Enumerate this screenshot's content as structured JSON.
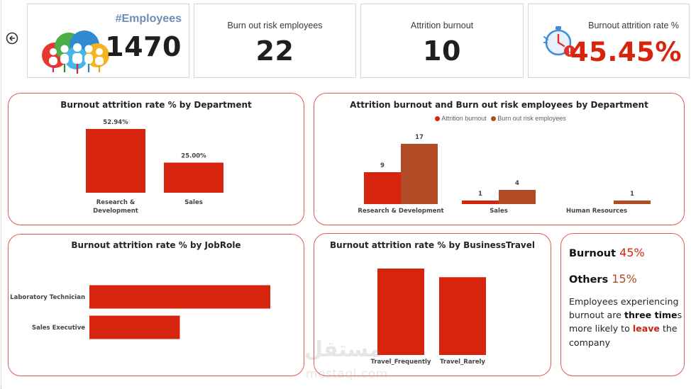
{
  "colors": {
    "red": "#d7240f",
    "brown": "#b14b25",
    "label_blue": "#6a8fb4",
    "card_border": "#e05a5a"
  },
  "nav": {
    "back_icon": "circle-arrow-left-icon"
  },
  "kpis": {
    "employees": {
      "label": "#Employees",
      "value": "1470",
      "icon": "people-cloud-icon"
    },
    "burnout_risk": {
      "label": "Burn out risk employees",
      "value": "22"
    },
    "attrition_burnout": {
      "label": "Attrition burnout",
      "value": "10"
    },
    "burnout_attrition_rate": {
      "label": "Burnout attrition rate %",
      "value": "45.45%",
      "icon": "stopwatch-alert-icon"
    }
  },
  "charts": {
    "dept_rate": {
      "title": "Burnout attrition rate % by Department",
      "chart_data": {
        "type": "bar",
        "title": "Burnout attrition rate % by Department",
        "categories": [
          "Research & Development",
          "Sales"
        ],
        "category_lines": [
          [
            "Research &",
            "Development"
          ],
          [
            "Sales"
          ]
        ],
        "values": [
          52.94,
          25.0
        ],
        "value_labels": [
          "52.94%",
          "25.00%"
        ],
        "ylim": [
          0,
          60
        ]
      }
    },
    "dept_counts": {
      "title": "Attrition burnout and Burn out risk employees by Department",
      "chart_data": {
        "type": "bar",
        "title": "Attrition burnout and Burn out risk employees by Department",
        "categories": [
          "Research & Development",
          "Sales",
          "Human Resources"
        ],
        "series": [
          {
            "name": "Attrition burnout",
            "values": [
              9,
              1,
              null
            ],
            "value_labels": [
              "9",
              "1",
              ""
            ]
          },
          {
            "name": "Burn out risk employees",
            "values": [
              17,
              4,
              1
            ],
            "value_labels": [
              "17",
              "4",
              "1"
            ]
          }
        ],
        "legend_position": "top-center",
        "ylim": [
          0,
          20
        ]
      }
    },
    "jobrole_rate": {
      "title": "Burnout attrition rate % by JobRole",
      "chart_data": {
        "type": "bar",
        "orientation": "horizontal",
        "title": "Burnout attrition rate % by JobRole",
        "categories": [
          "Laboratory Technician",
          "Sales Executive"
        ],
        "values": [
          60.0,
          30.0
        ],
        "xlim": [
          0,
          60
        ]
      }
    },
    "travel_rate": {
      "title": "Burnout attrition rate % by BusinessTravel",
      "chart_data": {
        "type": "bar",
        "title": "Burnout attrition rate % by BusinessTravel",
        "categories": [
          "Travel_Frequently",
          "Travel_Rarely"
        ],
        "values": [
          50.0,
          45.0
        ],
        "ylim": [
          0,
          50
        ]
      }
    }
  },
  "summary": {
    "burnout_label": "Burnout",
    "burnout_pct": "45%",
    "others_label": "Others",
    "others_pct": "15%",
    "desc_part1": "Employees experiencing burnout are",
    "desc_bold": "three time",
    "desc_part2": "s more likely to",
    "desc_leave": "leave",
    "desc_part3": "the company"
  },
  "watermark": {
    "arabic": "مستقل",
    "latin": "mostaql.com"
  }
}
